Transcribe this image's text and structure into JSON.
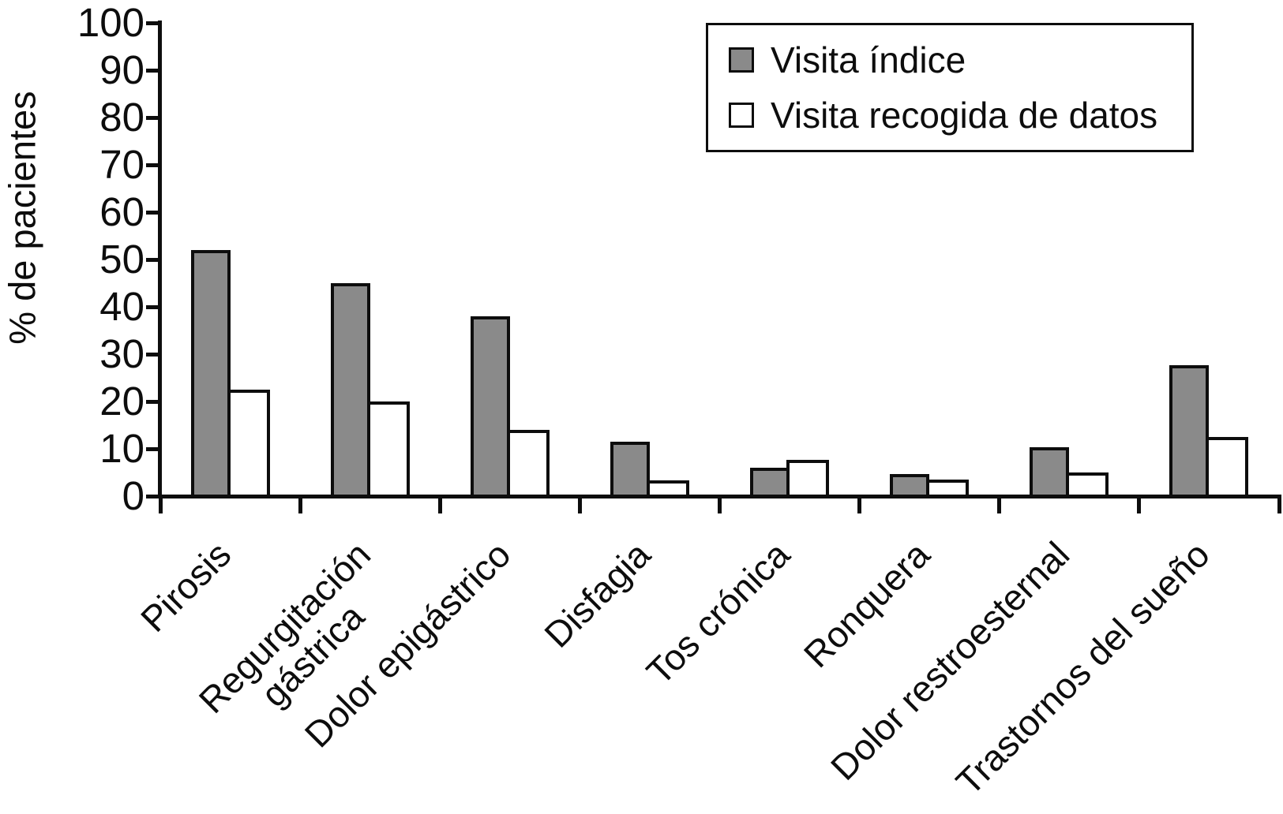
{
  "chart_data": {
    "type": "bar",
    "title": "",
    "ylabel": "% de pacientes",
    "xlabel": "",
    "ylim": [
      0,
      100
    ],
    "yticks": [
      0,
      10,
      20,
      30,
      40,
      50,
      60,
      70,
      80,
      90,
      100
    ],
    "grid": false,
    "legend_position": "top-right",
    "bar_border_color": "#0d0d0d",
    "categories": [
      "Pirosis",
      "Regurgitación\ngástrica",
      "Dolor epigástrico",
      "Disfagia",
      "Tos crónica",
      "Ronquera",
      "Dolor restroesternal",
      "Trastornos del sueño"
    ],
    "series": [
      {
        "name": "Visita índice",
        "color": "#8a8a8a",
        "values": [
          52,
          45,
          38,
          11.5,
          6,
          4.7,
          10.3,
          27.7
        ]
      },
      {
        "name": "Visita recogida de datos",
        "color": "#ffffff",
        "values": [
          22.5,
          20,
          14,
          3.3,
          7.6,
          3.5,
          5,
          12.5
        ]
      }
    ]
  }
}
